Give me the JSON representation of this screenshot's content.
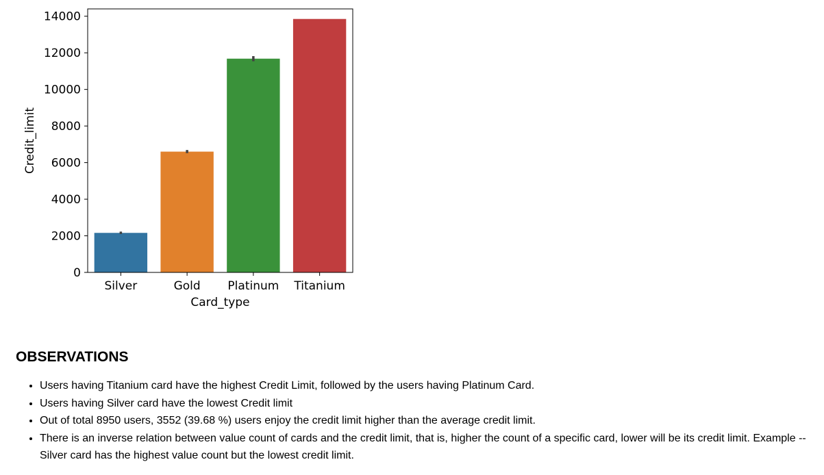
{
  "chart_data": {
    "type": "bar",
    "categories": [
      "Silver",
      "Gold",
      "Platinum",
      "Titanium"
    ],
    "values": [
      2160,
      6600,
      11680,
      13850
    ],
    "error_bars": [
      [
        2100,
        2230
      ],
      [
        6520,
        6690
      ],
      [
        11540,
        11820
      ],
      null
    ],
    "colors": [
      "#3274a1",
      "#e1812c",
      "#3a923a",
      "#c03d3e"
    ],
    "xlabel": "Card_type",
    "ylabel": "Credit_limit",
    "ylim": [
      0,
      14400
    ],
    "yticks": [
      0,
      2000,
      4000,
      6000,
      8000,
      10000,
      12000,
      14000
    ],
    "grid": false,
    "legend": "none"
  },
  "observations": {
    "title": "OBSERVATIONS",
    "items": [
      "Users having Titanium card have the highest Credit Limit, followed by the users having Platinum Card.",
      "Users having Silver card have the lowest Credit limit",
      "Out of total 8950 users, 3552 (39.68 %) users enjoy the credit limit higher than the average credit limit.",
      "There is an inverse relation between value count of cards and the credit limit, that is, higher the count of a specific card, lower will be its credit limit. Example -- Silver card has the highest value count but the lowest credit limit."
    ]
  }
}
